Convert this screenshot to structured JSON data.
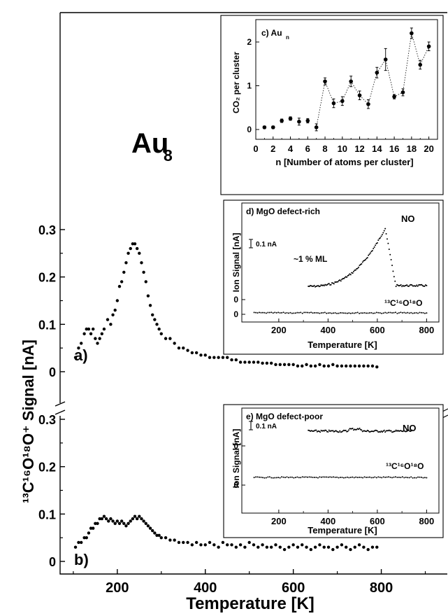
{
  "main": {
    "title": "Au",
    "title_sub": "8",
    "ylabel": "¹³C¹⁶O¹⁸O⁺ Signal [nA]",
    "xlabel": "Temperature [K]",
    "x_ticks": [
      "200",
      "400",
      "600",
      "800"
    ],
    "y_ticks_top": [
      "0.3",
      "0.2",
      "0.1",
      "0"
    ],
    "y_ticks_bottom": [
      "0.3",
      "0.2",
      "0.1",
      "0"
    ],
    "label_a": "a)",
    "label_b": "b)"
  },
  "inset_c": {
    "title": "c) Au",
    "title_sub": "n",
    "ylabel": "CO₂ per cluster",
    "xlabel": "n [Number of atoms per cluster]",
    "x_ticks": [
      "0",
      "2",
      "4",
      "6",
      "8",
      "10",
      "12",
      "14",
      "16",
      "18",
      "20"
    ],
    "y_ticks": [
      "0",
      "1",
      "2"
    ]
  },
  "inset_d": {
    "title": "d) MgO defect-rich",
    "scale": "0.1 nA",
    "ylabel": "Ion Signal [nA]",
    "xlabel": "Temperature [K]",
    "x_ticks": [
      "200",
      "400",
      "600",
      "800"
    ],
    "y_ticks": [
      "0",
      "0"
    ],
    "label_no": "NO",
    "label_co": "¹³C¹⁶O¹⁸O",
    "label_ml": "~1 % ML"
  },
  "inset_e": {
    "title": "e) MgO defect-poor",
    "scale": "0.1 nA",
    "ylabel": "Ion Signal [nA]",
    "xlabel": "Temperature [K]",
    "x_ticks": [
      "200",
      "400",
      "600",
      "800"
    ],
    "y_ticks": [
      "0",
      "0"
    ],
    "label_no": "NO",
    "label_co": "¹³C¹⁶O¹⁸O"
  },
  "chart_data": [
    {
      "type": "scatter",
      "panel": "a",
      "series": [
        {
          "x": [
            105,
            112,
            118,
            125,
            130,
            135,
            140,
            145,
            150,
            155,
            160,
            165,
            170,
            178,
            185,
            190,
            195,
            200,
            205,
            210,
            215,
            220,
            225,
            230,
            235,
            240,
            245,
            250,
            255,
            260,
            265,
            270,
            275,
            280,
            285,
            290,
            295,
            300,
            310,
            320,
            330,
            340,
            350,
            360,
            370,
            380,
            390,
            400,
            410,
            420,
            430,
            440,
            450,
            460,
            470,
            480,
            490,
            500,
            510,
            520,
            530,
            540,
            550,
            560,
            570,
            580,
            590,
            600,
            610,
            620,
            630,
            640,
            650,
            660,
            670,
            680,
            690,
            700,
            710,
            720,
            730,
            740,
            750,
            760,
            770,
            780,
            790
          ],
          "y": [
            0.03,
            0.05,
            0.06,
            0.08,
            0.09,
            0.09,
            0.08,
            0.09,
            0.07,
            0.06,
            0.07,
            0.08,
            0.09,
            0.11,
            0.1,
            0.12,
            0.13,
            0.15,
            0.18,
            0.19,
            0.21,
            0.23,
            0.25,
            0.26,
            0.27,
            0.27,
            0.26,
            0.25,
            0.23,
            0.21,
            0.19,
            0.16,
            0.14,
            0.12,
            0.11,
            0.1,
            0.09,
            0.08,
            0.07,
            0.07,
            0.06,
            0.05,
            0.05,
            0.045,
            0.04,
            0.04,
            0.035,
            0.035,
            0.03,
            0.03,
            0.03,
            0.03,
            0.03,
            0.025,
            0.025,
            0.02,
            0.02,
            0.02,
            0.02,
            0.02,
            0.018,
            0.018,
            0.018,
            0.015,
            0.015,
            0.015,
            0.015,
            0.015,
            0.012,
            0.012,
            0.015,
            0.012,
            0.012,
            0.015,
            0.012,
            0.012,
            0.015,
            0.012,
            0.012,
            0.012,
            0.012,
            0.012,
            0.012,
            0.012,
            0.012,
            0.012,
            0.01
          ]
        }
      ],
      "xlim": [
        70,
        950
      ],
      "ylim": [
        0,
        0.33
      ]
    },
    {
      "type": "scatter",
      "panel": "b",
      "series": [
        {
          "x": [
            105,
            112,
            118,
            125,
            130,
            135,
            140,
            145,
            150,
            155,
            160,
            165,
            170,
            175,
            180,
            185,
            190,
            195,
            200,
            205,
            210,
            215,
            220,
            225,
            230,
            235,
            240,
            245,
            250,
            255,
            260,
            265,
            270,
            275,
            280,
            285,
            290,
            295,
            300,
            310,
            320,
            330,
            340,
            350,
            360,
            370,
            380,
            390,
            400,
            410,
            420,
            430,
            440,
            450,
            460,
            470,
            480,
            490,
            500,
            510,
            520,
            530,
            540,
            550,
            560,
            570,
            580,
            590,
            600,
            610,
            620,
            630,
            640,
            650,
            660,
            670,
            680,
            690,
            700,
            710,
            720,
            730,
            740,
            750,
            760,
            770,
            780,
            790
          ],
          "y": [
            0.03,
            0.04,
            0.04,
            0.05,
            0.05,
            0.06,
            0.07,
            0.07,
            0.08,
            0.08,
            0.09,
            0.09,
            0.095,
            0.09,
            0.085,
            0.09,
            0.085,
            0.08,
            0.085,
            0.08,
            0.085,
            0.08,
            0.075,
            0.08,
            0.085,
            0.09,
            0.095,
            0.09,
            0.095,
            0.09,
            0.085,
            0.08,
            0.075,
            0.07,
            0.065,
            0.06,
            0.055,
            0.055,
            0.05,
            0.05,
            0.045,
            0.045,
            0.04,
            0.04,
            0.04,
            0.035,
            0.04,
            0.035,
            0.035,
            0.04,
            0.035,
            0.03,
            0.04,
            0.035,
            0.035,
            0.03,
            0.035,
            0.03,
            0.04,
            0.035,
            0.03,
            0.035,
            0.03,
            0.03,
            0.035,
            0.03,
            0.025,
            0.03,
            0.035,
            0.03,
            0.035,
            0.03,
            0.025,
            0.03,
            0.035,
            0.03,
            0.03,
            0.025,
            0.03,
            0.035,
            0.03,
            0.025,
            0.03,
            0.035,
            0.03,
            0.025,
            0.03,
            0.03
          ]
        }
      ],
      "xlim": [
        70,
        950
      ],
      "ylim": [
        0,
        0.33
      ]
    },
    {
      "type": "scatter",
      "panel": "c",
      "x": [
        1,
        2,
        3,
        4,
        5,
        6,
        7,
        8,
        9,
        10,
        11,
        12,
        13,
        14,
        15,
        16,
        17,
        18,
        19,
        20
      ],
      "y": [
        0.05,
        0.05,
        0.2,
        0.25,
        0.18,
        0.2,
        0.05,
        1.1,
        0.6,
        0.65,
        1.1,
        0.78,
        0.58,
        1.3,
        1.6,
        0.75,
        0.85,
        2.2,
        1.48,
        1.9
      ],
      "err": [
        0.03,
        0.03,
        0.04,
        0.04,
        0.08,
        0.05,
        0.08,
        0.08,
        0.1,
        0.1,
        0.12,
        0.1,
        0.1,
        0.12,
        0.25,
        0.05,
        0.08,
        0.12,
        0.1,
        0.1
      ],
      "xlim": [
        0,
        21
      ],
      "ylim": [
        -0.25,
        2.55
      ]
    },
    {
      "type": "scatter",
      "panel": "d",
      "series": [
        {
          "name": "NO",
          "x_start": 320,
          "x_end": 800,
          "peak_x": 630
        },
        {
          "name": "13C16O18O",
          "x_start": 100,
          "x_end": 800
        }
      ],
      "xlim": [
        50,
        850
      ]
    },
    {
      "type": "scatter",
      "panel": "e",
      "series": [
        {
          "name": "NO",
          "x_start": 320,
          "x_end": 740
        },
        {
          "name": "13C16O18O",
          "x_start": 100,
          "x_end": 800
        }
      ],
      "xlim": [
        50,
        850
      ]
    }
  ]
}
